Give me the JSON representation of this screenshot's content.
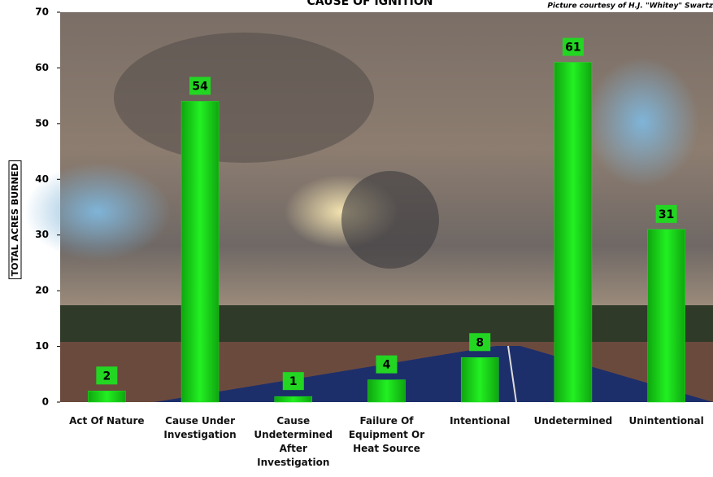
{
  "chart_data": {
    "type": "bar",
    "title": "CAUSE OF IGNITION",
    "credit": "Picture courtesy of H.J. \"Whitey\" Swartz",
    "y_label": "TOTAL ACRES BURNED",
    "categories": [
      "Act Of Nature",
      "Cause Under Investigation",
      "Cause Undetermined After Investigation",
      "Failure Of Equipment Or Heat Source",
      "Intentional",
      "Undetermined",
      "Unintentional"
    ],
    "values": [
      2,
      54,
      1,
      4,
      8,
      61,
      31
    ],
    "color": "#1ee61e",
    "ylim": [
      0,
      70
    ],
    "yticks": [
      0,
      10,
      20,
      30,
      40,
      50,
      60,
      70
    ]
  }
}
